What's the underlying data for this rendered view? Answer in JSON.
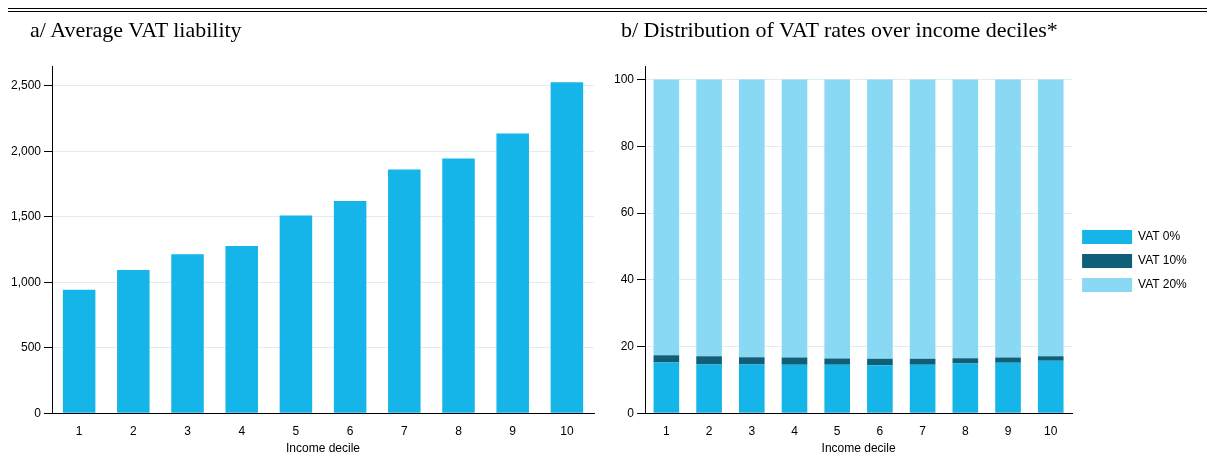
{
  "chart_data": [
    {
      "type": "bar",
      "title": "a/ Average VAT liability",
      "xlabel": "Income decile",
      "categories": [
        "1",
        "2",
        "3",
        "4",
        "5",
        "6",
        "7",
        "8",
        "9",
        "10"
      ],
      "values": [
        943,
        1093,
        1214,
        1277,
        1509,
        1620,
        1861,
        1946,
        2136,
        2527
      ],
      "color": "#15b5e9",
      "ylim": [
        0,
        2650
      ],
      "yticks": [
        0,
        500,
        {
          "value": 1000,
          "label": "1,000"
        },
        {
          "value": 1500,
          "label": "1,500"
        },
        {
          "value": 2000,
          "label": "2,000"
        },
        {
          "value": 2500,
          "label": "2,500"
        }
      ],
      "grid": "y"
    },
    {
      "type": "bar",
      "title": "b/ Distribution of VAT rates over income deciles*",
      "xlabel": "Income decile",
      "categories": [
        "1",
        "2",
        "3",
        "4",
        "5",
        "6",
        "7",
        "8",
        "9",
        "10"
      ],
      "stacked": true,
      "series": [
        {
          "name": "VAT 0%",
          "color": "#15b5e9",
          "values": [
            15.2,
            14.6,
            14.6,
            14.5,
            14.5,
            14.4,
            14.5,
            14.9,
            15.1,
            15.7
          ]
        },
        {
          "name": "VAT 10%",
          "color": "#0f5f78",
          "values": [
            2.2,
            2.5,
            2.2,
            2.2,
            1.9,
            1.9,
            1.8,
            1.6,
            1.6,
            1.4
          ]
        },
        {
          "name": "VAT 20%",
          "color": "#8ad9f4",
          "values": [
            82.6,
            82.9,
            83.2,
            83.3,
            83.6,
            83.7,
            83.7,
            83.5,
            83.3,
            82.9
          ]
        }
      ],
      "ylim": [
        0,
        104
      ],
      "yticks": [
        0,
        20,
        40,
        60,
        80,
        100
      ],
      "grid": "y",
      "legend": "right"
    }
  ]
}
